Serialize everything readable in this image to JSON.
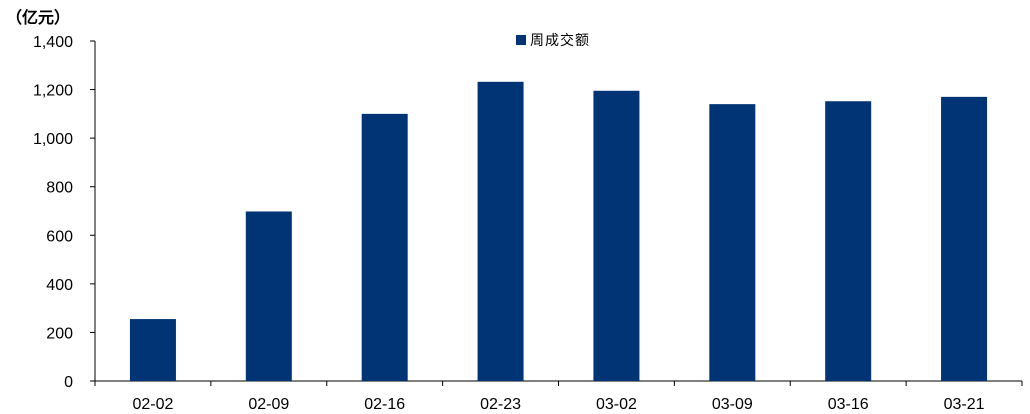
{
  "chart_data": {
    "type": "bar",
    "unit_label": "（亿元）",
    "categories": [
      "02-02",
      "02-09",
      "02-16",
      "02-23",
      "03-02",
      "03-09",
      "03-16",
      "03-21"
    ],
    "series": [
      {
        "name": "周成交额",
        "values": [
          255,
          698,
          1100,
          1232,
          1195,
          1140,
          1152,
          1170
        ]
      }
    ],
    "ylim": [
      0,
      1400
    ],
    "yticks": [
      0,
      200,
      400,
      600,
      800,
      1000,
      1200,
      1400
    ],
    "ytick_labels": [
      "0",
      "200",
      "400",
      "600",
      "800",
      "1,000",
      "1,200",
      "1,400"
    ],
    "legend_position": "top-center",
    "grid": false,
    "colors": {
      "bar": "#003474",
      "axis": "#000000"
    }
  }
}
